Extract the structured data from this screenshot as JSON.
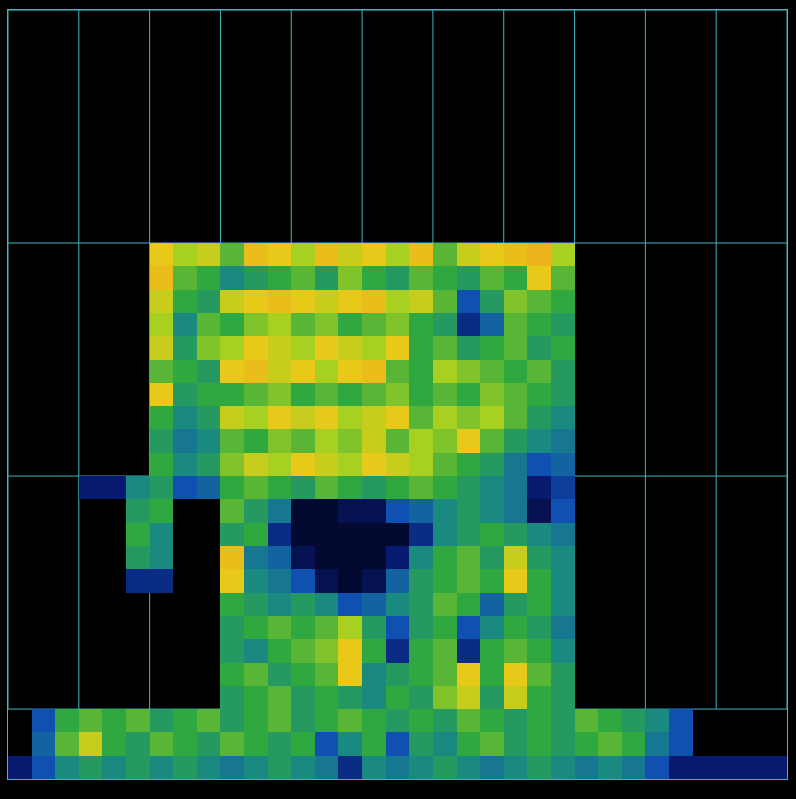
{
  "chart_data": {
    "type": "heatmap",
    "xlim": [
      0,
      33
    ],
    "ylim": [
      0,
      33
    ],
    "zlim": [
      0,
      1
    ],
    "tick_labels": false,
    "x": [
      0.5,
      1.5,
      2.5,
      3.5,
      4.5,
      5.5,
      6.5,
      7.5,
      8.5,
      9.5,
      10.5,
      11.5,
      12.5,
      13.5,
      14.5,
      15.5,
      16.5,
      17.5,
      18.5,
      19.5,
      20.5,
      21.5,
      22.5,
      23.5,
      24.5,
      25.5,
      26.5,
      27.5,
      28.5,
      29.5,
      30.5,
      31.5,
      32.5
    ],
    "y": [
      10.5,
      11.5,
      12.5,
      13.5,
      14.5,
      15.5,
      16.5,
      17.5,
      18.5,
      19.5,
      20.5,
      21.5,
      22.5,
      23.5,
      24.5,
      25.5,
      26.5,
      27.5,
      28.5,
      29.5,
      30.5,
      31.5,
      32.5
    ],
    "z": [
      [
        null,
        null,
        null,
        null,
        null,
        null,
        0.8,
        0.7,
        0.75,
        0.6,
        0.85,
        0.8,
        0.7,
        0.85,
        0.75,
        0.8,
        0.7,
        0.85,
        0.6,
        0.75,
        0.8,
        0.85,
        0.9,
        0.7,
        null,
        null,
        null,
        null,
        null,
        null,
        null,
        null,
        null
      ],
      [
        null,
        null,
        null,
        null,
        null,
        null,
        0.85,
        0.6,
        0.55,
        0.45,
        0.5,
        0.55,
        0.6,
        0.5,
        0.65,
        0.55,
        0.5,
        0.6,
        0.55,
        0.5,
        0.6,
        0.55,
        0.8,
        0.6,
        null,
        null,
        null,
        null,
        null,
        null,
        null,
        null,
        null
      ],
      [
        null,
        null,
        null,
        null,
        null,
        null,
        0.75,
        0.55,
        0.5,
        0.75,
        0.8,
        0.85,
        0.8,
        0.75,
        0.8,
        0.85,
        0.7,
        0.75,
        0.6,
        0.3,
        0.5,
        0.65,
        0.6,
        0.55,
        null,
        null,
        null,
        null,
        null,
        null,
        null,
        null,
        null
      ],
      [
        null,
        null,
        null,
        null,
        null,
        null,
        0.7,
        0.45,
        0.6,
        0.55,
        0.65,
        0.7,
        0.6,
        0.65,
        0.55,
        0.6,
        0.65,
        0.55,
        0.5,
        0.2,
        0.35,
        0.6,
        0.55,
        0.5,
        null,
        null,
        null,
        null,
        null,
        null,
        null,
        null,
        null
      ],
      [
        null,
        null,
        null,
        null,
        null,
        null,
        0.75,
        0.5,
        0.65,
        0.7,
        0.8,
        0.75,
        0.7,
        0.8,
        0.75,
        0.7,
        0.8,
        0.55,
        0.6,
        0.5,
        0.55,
        0.6,
        0.5,
        0.55,
        null,
        null,
        null,
        null,
        null,
        null,
        null,
        null,
        null
      ],
      [
        null,
        null,
        null,
        null,
        null,
        null,
        0.6,
        0.55,
        0.5,
        0.8,
        0.85,
        0.75,
        0.8,
        0.7,
        0.8,
        0.85,
        0.6,
        0.55,
        0.7,
        0.65,
        0.6,
        0.55,
        0.6,
        0.5,
        null,
        null,
        null,
        null,
        null,
        null,
        null,
        null,
        null
      ],
      [
        null,
        null,
        null,
        null,
        null,
        null,
        0.8,
        0.5,
        0.55,
        0.55,
        0.6,
        0.65,
        0.55,
        0.6,
        0.55,
        0.6,
        0.65,
        0.55,
        0.6,
        0.55,
        0.65,
        0.6,
        0.55,
        0.5,
        null,
        null,
        null,
        null,
        null,
        null,
        null,
        null,
        null
      ],
      [
        null,
        null,
        null,
        null,
        null,
        null,
        0.55,
        0.45,
        0.5,
        0.75,
        0.7,
        0.8,
        0.75,
        0.8,
        0.7,
        0.75,
        0.8,
        0.6,
        0.7,
        0.65,
        0.7,
        0.6,
        0.5,
        0.45,
        null,
        null,
        null,
        null,
        null,
        null,
        null,
        null,
        null
      ],
      [
        null,
        null,
        null,
        null,
        null,
        null,
        0.5,
        0.4,
        0.45,
        0.6,
        0.55,
        0.65,
        0.6,
        0.7,
        0.65,
        0.75,
        0.6,
        0.7,
        0.65,
        0.8,
        0.6,
        0.5,
        0.45,
        0.4,
        null,
        null,
        null,
        null,
        null,
        null,
        null,
        null,
        null
      ],
      [
        null,
        null,
        null,
        null,
        null,
        null,
        0.55,
        0.45,
        0.5,
        0.65,
        0.75,
        0.7,
        0.8,
        0.75,
        0.7,
        0.8,
        0.75,
        0.7,
        0.6,
        0.55,
        0.5,
        0.4,
        0.3,
        0.35,
        null,
        null,
        null,
        null,
        null,
        null,
        null,
        null,
        null
      ],
      [
        null,
        null,
        null,
        0.15,
        0.15,
        0.45,
        0.5,
        0.3,
        0.35,
        0.55,
        0.6,
        0.55,
        0.5,
        0.6,
        0.55,
        0.5,
        0.55,
        0.6,
        0.55,
        0.5,
        0.45,
        0.4,
        0.15,
        0.25,
        null,
        null,
        null,
        null,
        null,
        null,
        null,
        null,
        null
      ],
      [
        null,
        null,
        null,
        null,
        null,
        0.5,
        0.55,
        null,
        null,
        0.6,
        0.5,
        0.4,
        0.05,
        0.05,
        0.1,
        0.1,
        0.3,
        0.35,
        0.45,
        0.5,
        0.45,
        0.4,
        0.1,
        0.3,
        null,
        null,
        null,
        null,
        null,
        null,
        null,
        null,
        null
      ],
      [
        null,
        null,
        null,
        null,
        null,
        0.55,
        0.45,
        null,
        null,
        0.5,
        0.55,
        0.2,
        0.05,
        0.05,
        0.05,
        0.05,
        0.05,
        0.2,
        0.45,
        0.5,
        0.55,
        0.5,
        0.45,
        0.4,
        null,
        null,
        null,
        null,
        null,
        null,
        null,
        null,
        null
      ],
      [
        null,
        null,
        null,
        null,
        null,
        0.5,
        0.45,
        null,
        null,
        0.85,
        0.4,
        0.35,
        0.1,
        0.05,
        0.05,
        0.05,
        0.15,
        0.45,
        0.55,
        0.6,
        0.5,
        0.75,
        0.5,
        0.45,
        null,
        null,
        null,
        null,
        null,
        null,
        null,
        null,
        null
      ],
      [
        null,
        null,
        null,
        null,
        null,
        0.2,
        0.2,
        null,
        null,
        0.8,
        0.45,
        0.4,
        0.3,
        0.1,
        0.05,
        0.1,
        0.35,
        0.5,
        0.55,
        0.6,
        0.55,
        0.8,
        0.55,
        0.45,
        null,
        null,
        null,
        null,
        null,
        null,
        null,
        null,
        null
      ],
      [
        null,
        null,
        null,
        null,
        null,
        null,
        null,
        null,
        null,
        0.55,
        0.5,
        0.45,
        0.5,
        0.45,
        0.3,
        0.35,
        0.45,
        0.5,
        0.6,
        0.55,
        0.35,
        0.5,
        0.55,
        0.45,
        null,
        null,
        null,
        null,
        null,
        null,
        null,
        null,
        null
      ],
      [
        null,
        null,
        null,
        null,
        null,
        null,
        null,
        null,
        null,
        0.5,
        0.55,
        0.6,
        0.55,
        0.6,
        0.7,
        0.5,
        0.3,
        0.5,
        0.55,
        0.3,
        0.45,
        0.55,
        0.5,
        0.4,
        null,
        null,
        null,
        null,
        null,
        null,
        null,
        null,
        null
      ],
      [
        null,
        null,
        null,
        null,
        null,
        null,
        null,
        null,
        null,
        0.5,
        0.45,
        0.55,
        0.6,
        0.65,
        0.8,
        0.55,
        0.2,
        0.55,
        0.6,
        0.2,
        0.55,
        0.6,
        0.55,
        0.45,
        null,
        null,
        null,
        null,
        null,
        null,
        null,
        null,
        null
      ],
      [
        null,
        null,
        null,
        null,
        null,
        null,
        null,
        null,
        null,
        0.55,
        0.6,
        0.5,
        0.55,
        0.6,
        0.8,
        0.45,
        0.5,
        0.55,
        0.6,
        0.8,
        0.55,
        0.8,
        0.6,
        0.5,
        null,
        null,
        null,
        null,
        null,
        null,
        null,
        null,
        null
      ],
      [
        null,
        null,
        null,
        null,
        null,
        null,
        null,
        null,
        null,
        0.5,
        0.55,
        0.6,
        0.5,
        0.55,
        0.5,
        0.45,
        0.55,
        0.5,
        0.65,
        0.75,
        0.5,
        0.75,
        0.55,
        0.5,
        null,
        null,
        null,
        null,
        null,
        null,
        null,
        null,
        null
      ],
      [
        null,
        0.3,
        0.55,
        0.6,
        0.55,
        0.6,
        0.5,
        0.55,
        0.6,
        0.5,
        0.55,
        0.6,
        0.5,
        0.55,
        0.6,
        0.55,
        0.5,
        0.55,
        0.5,
        0.6,
        0.55,
        0.5,
        0.55,
        0.5,
        0.6,
        0.55,
        0.5,
        0.45,
        0.3,
        null,
        null,
        null,
        null
      ],
      [
        null,
        0.35,
        0.6,
        0.75,
        0.55,
        0.5,
        0.6,
        0.55,
        0.5,
        0.6,
        0.55,
        0.5,
        0.55,
        0.3,
        0.45,
        0.55,
        0.3,
        0.5,
        0.45,
        0.55,
        0.6,
        0.5,
        0.55,
        0.5,
        0.55,
        0.6,
        0.55,
        0.4,
        0.3,
        null,
        null,
        null,
        null
      ],
      [
        0.15,
        0.3,
        0.45,
        0.5,
        0.45,
        0.5,
        0.45,
        0.5,
        0.45,
        0.4,
        0.45,
        0.5,
        0.45,
        0.4,
        0.2,
        0.45,
        0.4,
        0.45,
        0.5,
        0.45,
        0.4,
        0.45,
        0.5,
        0.45,
        0.4,
        0.45,
        0.4,
        0.3,
        0.15,
        0.15,
        0.15,
        0.15,
        0.15
      ]
    ]
  }
}
